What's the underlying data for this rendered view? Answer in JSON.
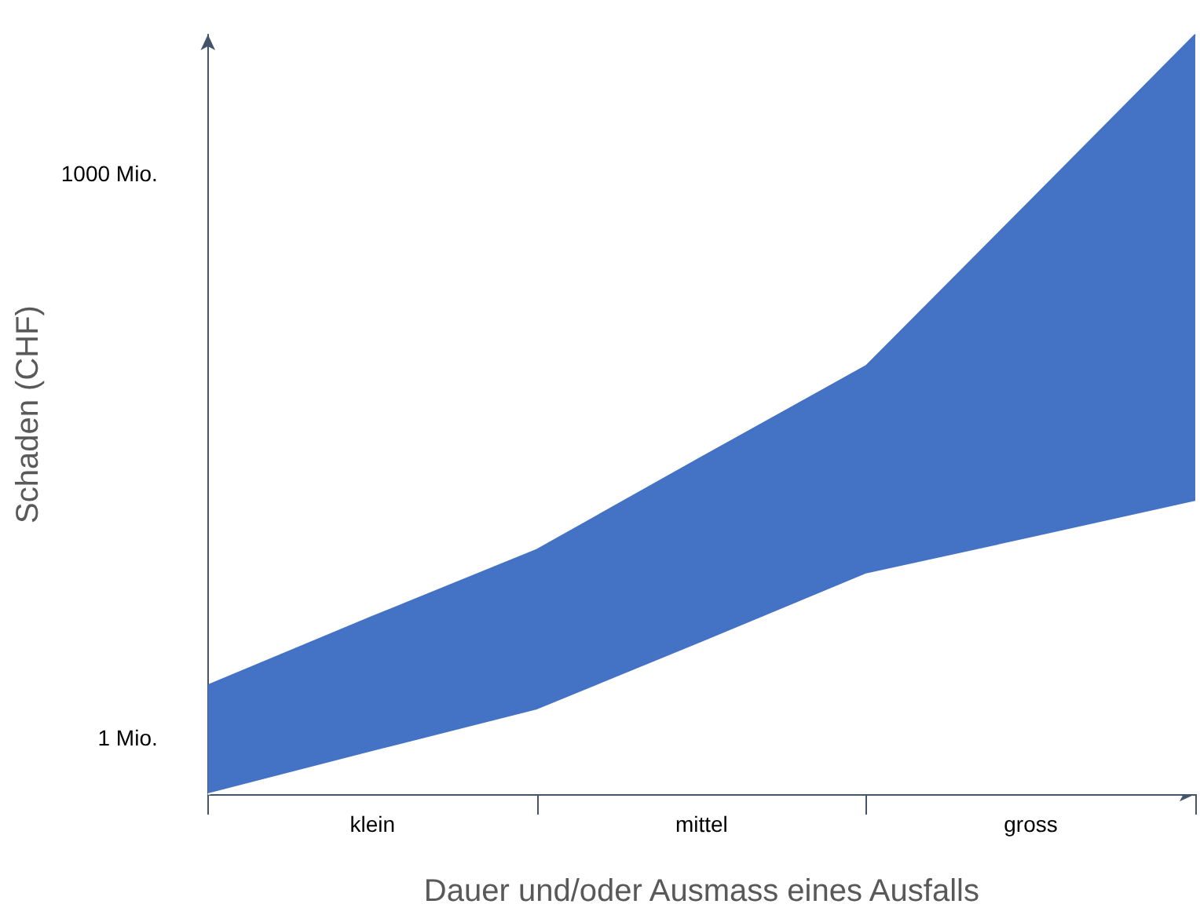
{
  "chart_data": {
    "type": "area",
    "xlabel": "Dauer und/oder Ausmass eines Ausfalls",
    "ylabel": "Schaden (CHF)",
    "categories": [
      null,
      "klein",
      null,
      "mittel",
      null,
      "gross",
      null
    ],
    "series": [
      {
        "color": "#4472c4",
        "values": [
          1.9,
          4.4,
          10,
          31,
          95,
          720,
          5500
        ]
      },
      {
        "color": "#ffffff",
        "values": [
          0.5,
          0.84,
          1.4,
          3.2,
          7.4,
          11.5,
          18
        ]
      }
    ],
    "ylim": [
      0.5,
      5500
    ],
    "yticks": [
      {
        "value": 1,
        "label": "1 Mio."
      },
      {
        "value": 1000,
        "label": "1000 Mio."
      }
    ],
    "log": "y",
    "grid": false
  }
}
